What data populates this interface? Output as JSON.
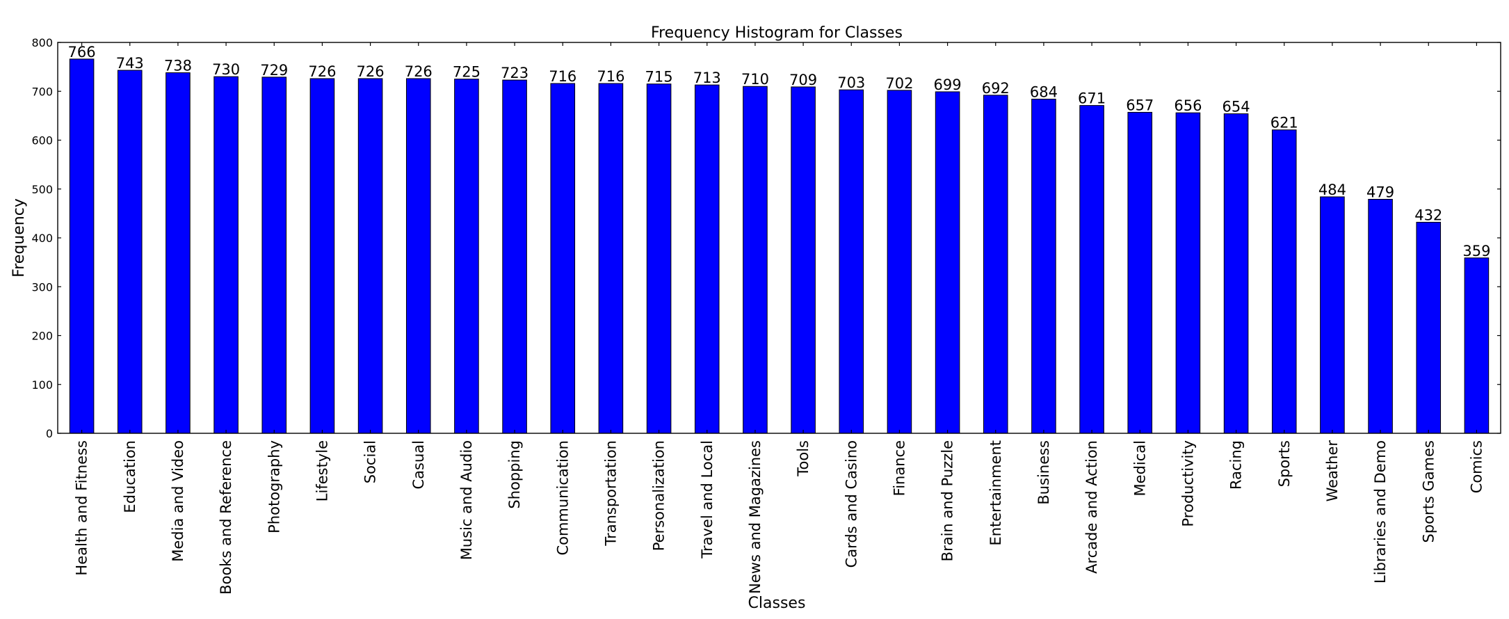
{
  "chart_data": {
    "type": "bar",
    "title": "Frequency Histogram for Classes",
    "xlabel": "Classes",
    "ylabel": "Frequency",
    "ylim": [
      0,
      800
    ],
    "yticks": [
      0,
      100,
      200,
      300,
      400,
      500,
      600,
      700,
      800
    ],
    "grid": false,
    "bar_color": "#0000ff",
    "categories": [
      "Health and Fitness",
      "Education",
      "Media and Video",
      "Books and Reference",
      "Photography",
      "Lifestyle",
      "Social",
      "Casual",
      "Music and Audio",
      "Shopping",
      "Communication",
      "Transportation",
      "Personalization",
      "Travel and Local",
      "News and Magazines",
      "Tools",
      "Cards and Casino",
      "Finance",
      "Brain and Puzzle",
      "Entertainment",
      "Business",
      "Arcade and Action",
      "Medical",
      "Productivity",
      "Racing",
      "Sports",
      "Weather",
      "Libraries and Demo",
      "Sports Games",
      "Comics"
    ],
    "values": [
      766,
      743,
      738,
      730,
      729,
      726,
      726,
      726,
      725,
      723,
      716,
      716,
      715,
      713,
      710,
      709,
      703,
      702,
      699,
      692,
      684,
      671,
      657,
      656,
      654,
      621,
      484,
      479,
      432,
      359
    ]
  }
}
